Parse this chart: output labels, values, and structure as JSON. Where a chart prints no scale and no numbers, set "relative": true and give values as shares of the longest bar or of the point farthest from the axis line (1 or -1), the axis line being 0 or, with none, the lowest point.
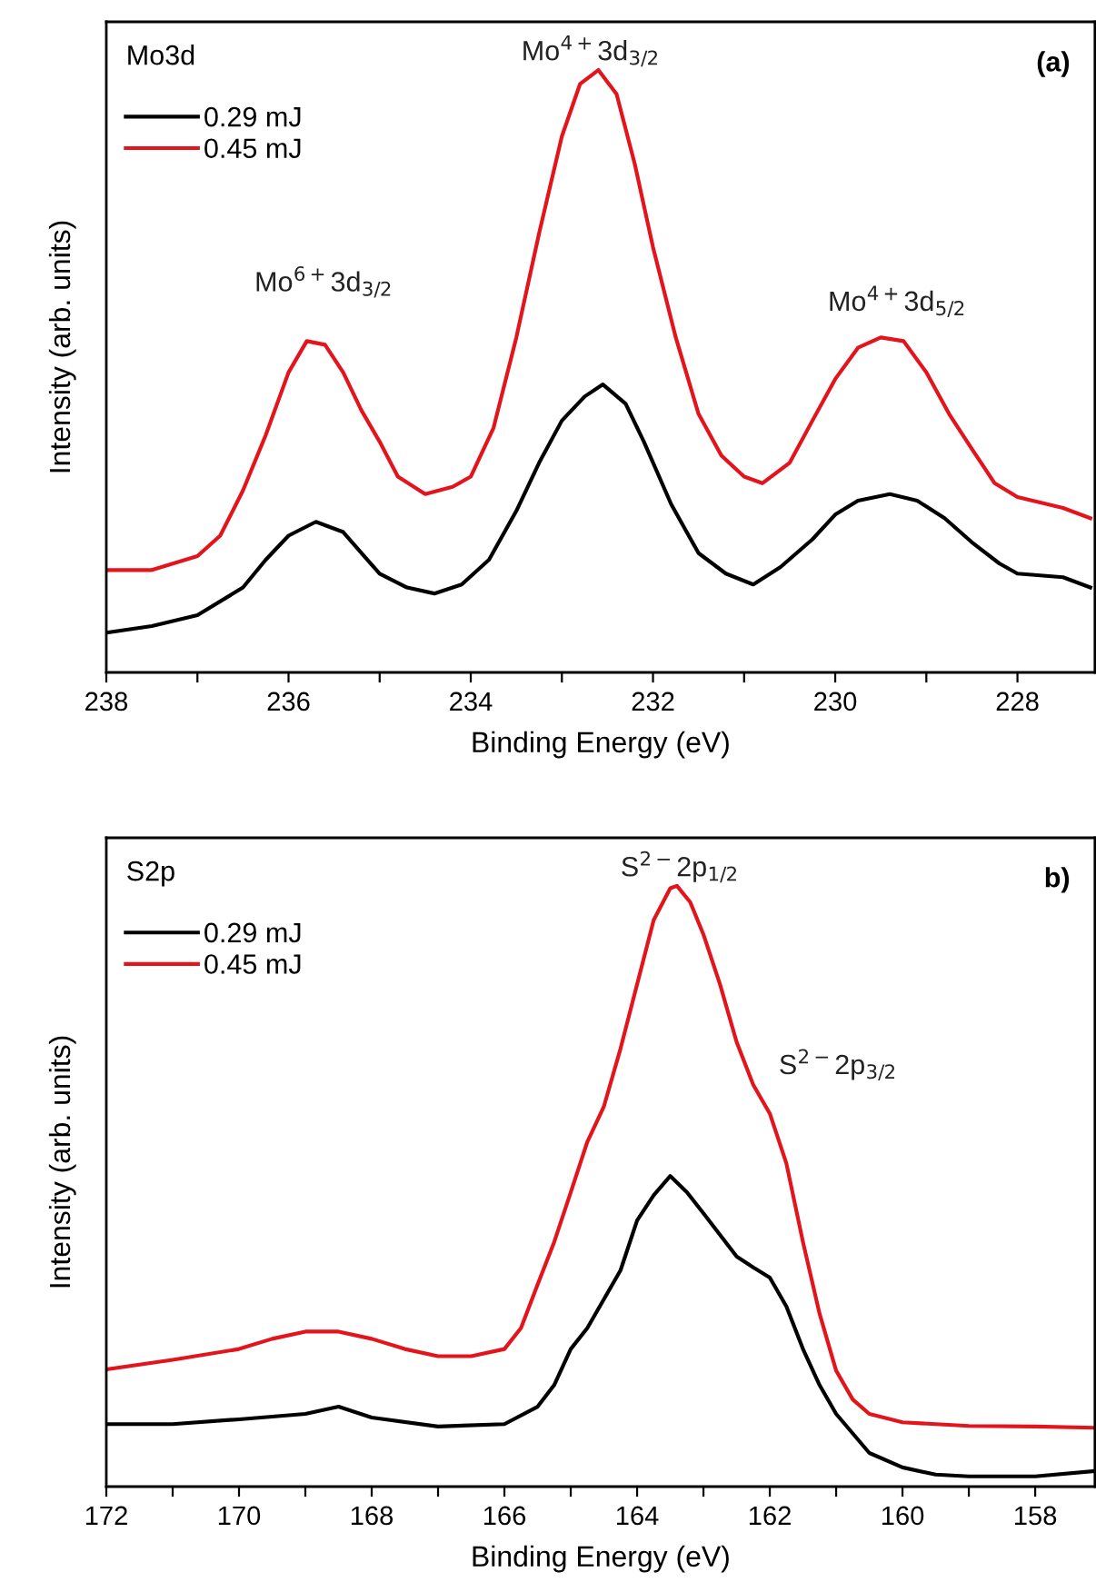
{
  "chart_data": [
    {
      "type": "line",
      "relative": true,
      "xlabel": "Binding Energy (eV)",
      "ylabel": "Intensity (arb. units)",
      "xlim": [
        238,
        227.15
      ],
      "xticks": [
        238,
        {
          "value": 237,
          "label": null
        },
        236,
        {
          "value": 235,
          "label": null
        },
        234,
        {
          "value": 233,
          "label": null
        },
        232,
        {
          "value": 231,
          "label": null
        },
        230,
        {
          "value": 229,
          "label": null
        },
        228
      ],
      "tick_labels": "x",
      "legend": "top left",
      "grid": false,
      "marker": "none",
      "line_style": "solid",
      "annotations": [
        "Mo3d",
        "(a)",
        "Mo$^{6+}$3d$_{3/2}$",
        "Mo$^{4+}$3d$_{3/2}$",
        "Mo$^{4+}$3d$_{5/2}$"
      ],
      "series": [
        {
          "name": "0.29 mJ",
          "color": "#000000",
          "x": [
            238,
            237.5,
            237,
            236.5,
            236.25,
            236,
            235.7,
            235.4,
            235.2,
            235,
            234.7,
            234.4,
            234.1,
            233.8,
            233.5,
            233.25,
            233,
            232.75,
            232.55,
            232.3,
            232.1,
            231.8,
            231.5,
            231.2,
            230.9,
            230.6,
            230.25,
            230,
            229.75,
            229.4,
            229.1,
            228.8,
            228.5,
            228.2,
            228,
            227.5,
            227.2
          ],
          "values": [
            0.066,
            0.077,
            0.095,
            0.141,
            0.187,
            0.227,
            0.25,
            0.233,
            0.198,
            0.164,
            0.141,
            0.131,
            0.146,
            0.187,
            0.268,
            0.348,
            0.418,
            0.458,
            0.478,
            0.446,
            0.383,
            0.279,
            0.198,
            0.164,
            0.146,
            0.175,
            0.221,
            0.262,
            0.285,
            0.296,
            0.285,
            0.256,
            0.216,
            0.181,
            0.164,
            0.158,
            0.141
          ]
        },
        {
          "name": "0.45 mJ",
          "color": "#e3141b",
          "x": [
            238,
            237.5,
            237,
            236.75,
            236.5,
            236.25,
            236,
            235.8,
            235.6,
            235.4,
            235.2,
            235,
            234.8,
            234.5,
            234.2,
            234,
            233.75,
            233.5,
            233.25,
            233,
            232.8,
            232.6,
            232.4,
            232.2,
            232,
            231.75,
            231.5,
            231.25,
            231,
            230.8,
            230.5,
            230.25,
            230,
            229.75,
            229.5,
            229.25,
            229,
            228.75,
            228.5,
            228.25,
            228,
            227.5,
            227.2
          ],
          "values": [
            0.17,
            0.17,
            0.193,
            0.227,
            0.302,
            0.394,
            0.498,
            0.55,
            0.544,
            0.498,
            0.435,
            0.383,
            0.325,
            0.296,
            0.308,
            0.325,
            0.406,
            0.556,
            0.729,
            0.89,
            0.977,
            1.0,
            0.96,
            0.844,
            0.706,
            0.556,
            0.429,
            0.36,
            0.325,
            0.314,
            0.348,
            0.418,
            0.487,
            0.539,
            0.556,
            0.55,
            0.498,
            0.429,
            0.371,
            0.314,
            0.291,
            0.273,
            0.256
          ]
        }
      ]
    },
    {
      "type": "line",
      "relative": true,
      "xlabel": "Binding Energy (eV)",
      "ylabel": "Intensity (arb. units)",
      "xlim": [
        172,
        157.1
      ],
      "xticks": [
        172,
        {
          "value": 171,
          "label": null
        },
        170,
        {
          "value": 169,
          "label": null
        },
        168,
        {
          "value": 167,
          "label": null
        },
        166,
        {
          "value": 165,
          "label": null
        },
        164,
        {
          "value": 163,
          "label": null
        },
        162,
        {
          "value": 161,
          "label": null
        },
        160,
        {
          "value": 159,
          "label": null
        },
        158
      ],
      "tick_labels": "x",
      "legend": "top left",
      "grid": false,
      "marker": "none",
      "line_style": "solid",
      "annotations": [
        "S2p",
        "b)",
        "S$^{2−}$2p$_{1/2}$",
        "S$^{2−}$2p$_{3/2}$"
      ],
      "series": [
        {
          "name": "0.29 mJ",
          "color": "#000000",
          "x": [
            172,
            171,
            170,
            169,
            168.5,
            168,
            167,
            166,
            165.5,
            165.25,
            165,
            164.75,
            164.5,
            164.25,
            164,
            163.75,
            163.5,
            163.25,
            163,
            162.75,
            162.5,
            162.25,
            162,
            161.75,
            161.5,
            161.25,
            161,
            160.5,
            160,
            159.5,
            159,
            158,
            157.1
          ],
          "values": [
            0.104,
            0.104,
            0.112,
            0.121,
            0.133,
            0.115,
            0.1,
            0.104,
            0.133,
            0.169,
            0.229,
            0.264,
            0.312,
            0.36,
            0.443,
            0.485,
            0.517,
            0.49,
            0.455,
            0.419,
            0.383,
            0.365,
            0.348,
            0.3,
            0.229,
            0.169,
            0.121,
            0.056,
            0.032,
            0.02,
            0.017,
            0.017,
            0.026
          ]
        },
        {
          "name": "0.45 mJ",
          "color": "#e3141b",
          "x": [
            172,
            171,
            170,
            169.5,
            169,
            168.5,
            168,
            167.5,
            167,
            166.5,
            166,
            165.75,
            165.5,
            165.25,
            165,
            164.75,
            164.5,
            164.25,
            164,
            163.75,
            163.5,
            163.4,
            163.2,
            163,
            162.75,
            162.5,
            162.25,
            162,
            161.75,
            161.5,
            161.25,
            161,
            160.75,
            160.5,
            160,
            159,
            158,
            157.1
          ],
          "values": [
            0.195,
            0.211,
            0.229,
            0.246,
            0.258,
            0.258,
            0.246,
            0.229,
            0.217,
            0.217,
            0.229,
            0.264,
            0.336,
            0.407,
            0.49,
            0.574,
            0.633,
            0.729,
            0.836,
            0.943,
            0.996,
            1.0,
            0.973,
            0.919,
            0.836,
            0.74,
            0.669,
            0.621,
            0.538,
            0.407,
            0.288,
            0.193,
            0.145,
            0.121,
            0.107,
            0.101,
            0.1,
            0.098
          ]
        }
      ]
    }
  ]
}
